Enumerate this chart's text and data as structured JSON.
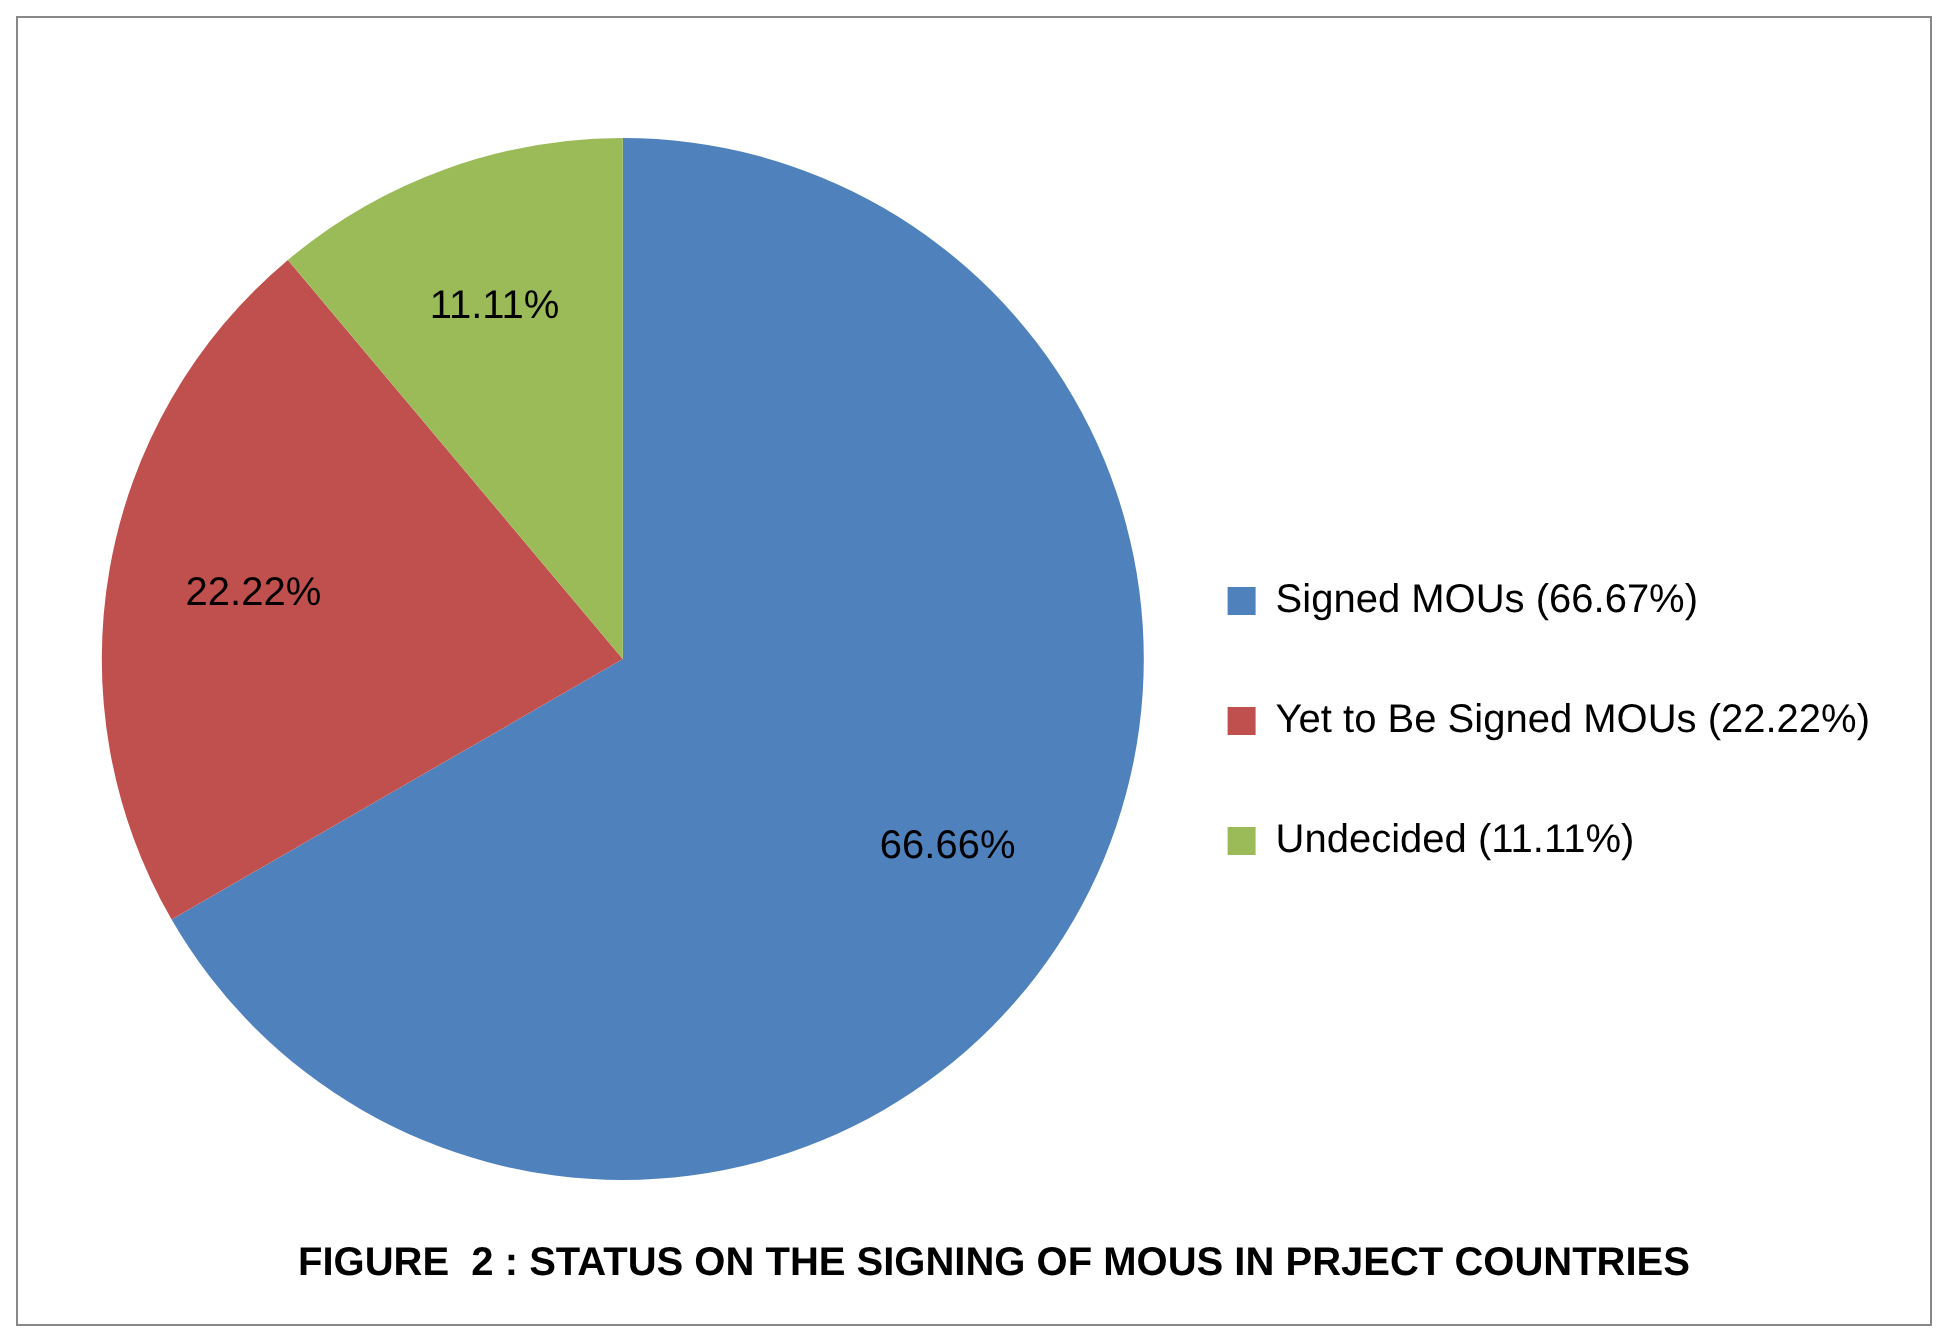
{
  "chart_data": {
    "type": "pie",
    "title": "FIGURE  2 : STATUS ON THE SIGNING OF MOUS IN PRJECT COUNTRIES",
    "categories": [
      "Signed MOUs (66.67%)",
      "Yet to Be Signed MOUs (22.22%)",
      "Undecided (11.11%)"
    ],
    "values": [
      66.66,
      22.22,
      11.11
    ],
    "colors": [
      "#4f81bd",
      "#c0504d",
      "#9bbb59"
    ],
    "value_labels": [
      "66.66%",
      "22.22%",
      "11.11%"
    ],
    "legend": "right"
  }
}
